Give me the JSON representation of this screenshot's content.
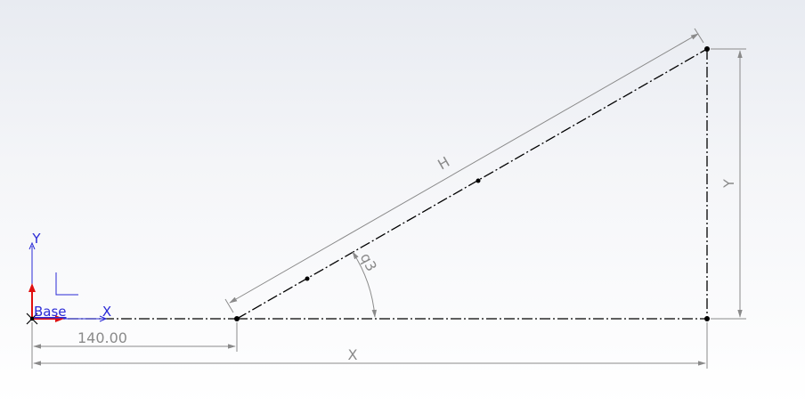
{
  "sketch": {
    "dimensions": {
      "offset": "140.00",
      "horizontal": "X",
      "vertical": "Y",
      "hypotenuse": "H",
      "angle": "q3"
    },
    "origin": {
      "x_axis_label": "X",
      "y_axis_label": "Y",
      "base_label": "Base"
    },
    "colors": {
      "sketch_line": "#000000",
      "dimension_line": "#8a8a8a",
      "axis_label": "#2a2ad6",
      "origin_red": "#e01010"
    }
  }
}
